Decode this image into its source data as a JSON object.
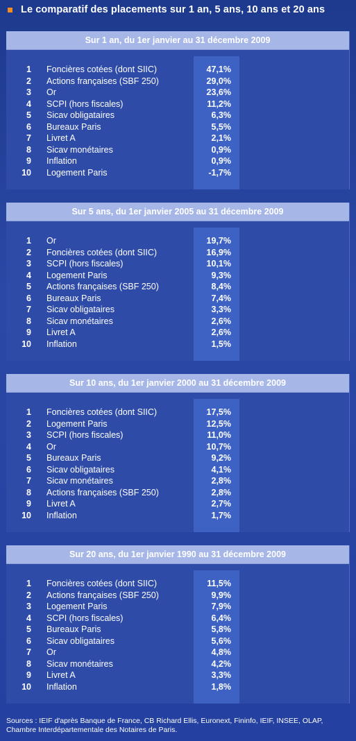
{
  "title": "Le comparatif des placements sur 1 an, 5 ans, 10 ans et 20 ans",
  "colors": {
    "background": "#2440a0",
    "panel": "#2e4ba8",
    "panel_header": "#a6b6e6",
    "value_column": "#3d62c4",
    "bullet": "#f28c1e"
  },
  "chart_data": [
    {
      "type": "table",
      "title": "Sur 1 an, du 1er janvier au 31 décembre 2009",
      "rows": [
        {
          "rank": "1",
          "label": "Foncières cotées (dont SIIC)",
          "value": "47,1%"
        },
        {
          "rank": "2",
          "label": "Actions françaises (SBF 250)",
          "value": "29,0%"
        },
        {
          "rank": "3",
          "label": "Or",
          "value": "23,6%"
        },
        {
          "rank": "4",
          "label": "SCPI (hors fiscales)",
          "value": "11,2%"
        },
        {
          "rank": "5",
          "label": "Sicav obligataires",
          "value": "6,3%"
        },
        {
          "rank": "6",
          "label": "Bureaux Paris",
          "value": "5,5%"
        },
        {
          "rank": "7",
          "label": "Livret A",
          "value": "2,1%"
        },
        {
          "rank": "8",
          "label": "Sicav monétaires",
          "value": "0,9%"
        },
        {
          "rank": "9",
          "label": "Inflation",
          "value": "0,9%"
        },
        {
          "rank": "10",
          "label": "Logement Paris",
          "value": "-1,7%"
        }
      ]
    },
    {
      "type": "table",
      "title": "Sur 5 ans, du 1er janvier 2005 au 31 décembre 2009",
      "rows": [
        {
          "rank": "1",
          "label": "Or",
          "value": "19,7%"
        },
        {
          "rank": "2",
          "label": "Foncières cotées (dont SIIC)",
          "value": "16,9%"
        },
        {
          "rank": "3",
          "label": "SCPI (hors fiscales)",
          "value": "10,1%"
        },
        {
          "rank": "4",
          "label": "Logement Paris",
          "value": "9,3%"
        },
        {
          "rank": "5",
          "label": "Actions françaises (SBF 250)",
          "value": "8,4%"
        },
        {
          "rank": "6",
          "label": "Bureaux Paris",
          "value": "7,4%"
        },
        {
          "rank": "7",
          "label": "Sicav obligataires",
          "value": "3,3%"
        },
        {
          "rank": "8",
          "label": "Sicav monétaires",
          "value": "2,6%"
        },
        {
          "rank": "9",
          "label": "Livret A",
          "value": "2,6%"
        },
        {
          "rank": "10",
          "label": "Inflation",
          "value": "1,5%"
        }
      ]
    },
    {
      "type": "table",
      "title": "Sur 10 ans, du 1er janvier 2000 au 31 décembre 2009",
      "rows": [
        {
          "rank": "1",
          "label": "Foncières cotées (dont SIIC)",
          "value": "17,5%"
        },
        {
          "rank": "2",
          "label": "Logement Paris",
          "value": "12,5%"
        },
        {
          "rank": "3",
          "label": "SCPI (hors fiscales)",
          "value": "11,0%"
        },
        {
          "rank": "4",
          "label": "Or",
          "value": "10,7%"
        },
        {
          "rank": "5",
          "label": "Bureaux Paris",
          "value": "9,2%"
        },
        {
          "rank": "6",
          "label": "Sicav obligataires",
          "value": "4,1%"
        },
        {
          "rank": "7",
          "label": "Sicav monétaires",
          "value": "2,8%"
        },
        {
          "rank": "8",
          "label": "Actions françaises (SBF 250)",
          "value": "2,8%"
        },
        {
          "rank": "9",
          "label": "Livret A",
          "value": "2,7%"
        },
        {
          "rank": "10",
          "label": "Inflation",
          "value": "1,7%"
        }
      ]
    },
    {
      "type": "table",
      "title": "Sur 20 ans, du 1er janvier 1990 au 31 décembre 2009",
      "rows": [
        {
          "rank": "1",
          "label": "Foncières cotées (dont SIIC)",
          "value": "11,5%"
        },
        {
          "rank": "2",
          "label": "Actions françaises (SBF 250)",
          "value": "9,9%"
        },
        {
          "rank": "3",
          "label": "Logement Paris",
          "value": "7,9%"
        },
        {
          "rank": "4",
          "label": "SCPI (hors fiscales)",
          "value": "6,4%"
        },
        {
          "rank": "5",
          "label": "Bureaux Paris",
          "value": "5,8%"
        },
        {
          "rank": "6",
          "label": "Sicav obligataires",
          "value": "5,6%"
        },
        {
          "rank": "7",
          "label": "Or",
          "value": "4,8%"
        },
        {
          "rank": "8",
          "label": "Sicav monétaires",
          "value": "4,2%"
        },
        {
          "rank": "9",
          "label": "Livret A",
          "value": "3,3%"
        },
        {
          "rank": "10",
          "label": "Inflation",
          "value": "1,8%"
        }
      ]
    }
  ],
  "sources": "Sources : IEIF d'après Banque de France, CB Richard Ellis, Euronext, Fininfo, IEIF, INSEE, OLAP, Chambre Interdépartementale des Notaires de Paris."
}
